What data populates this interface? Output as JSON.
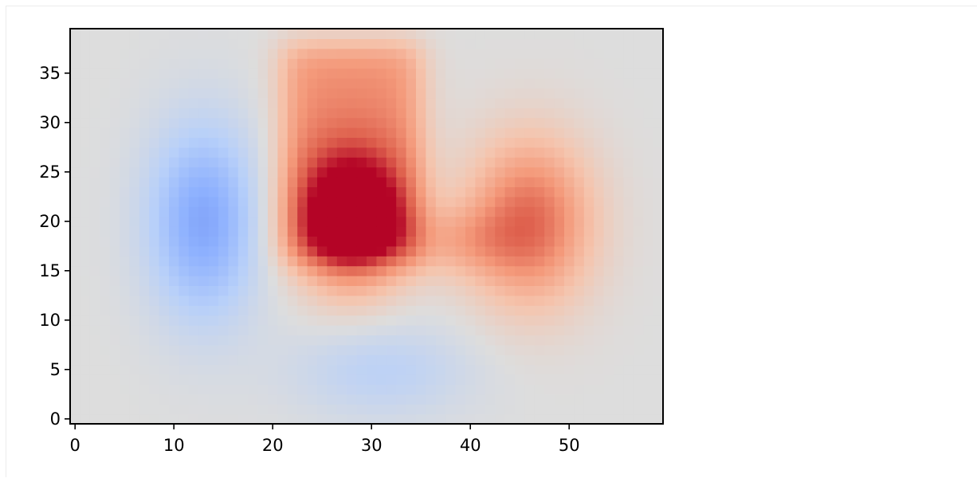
{
  "chart_data": {
    "type": "heatmap",
    "title": "",
    "xlabel": "",
    "ylabel": "",
    "colormap": "coolwarm",
    "grid_size": {
      "cols": 60,
      "rows": 40
    },
    "xlim": [
      -0.5,
      59.5
    ],
    "ylim": [
      -0.5,
      39.5
    ],
    "x_ticks": [
      0,
      10,
      20,
      30,
      40,
      50
    ],
    "x_tick_labels": [
      "0",
      "10",
      "20",
      "30",
      "40",
      "50"
    ],
    "y_ticks": [
      0,
      5,
      10,
      15,
      20,
      25,
      30,
      35
    ],
    "y_tick_labels": [
      "0",
      "5",
      "10",
      "15",
      "20",
      "25",
      "30",
      "35"
    ],
    "value_range": [
      -1,
      1
    ],
    "grid": false,
    "components": [
      {
        "kind": "gaussian",
        "x": 13,
        "y": 20,
        "sx": 4.0,
        "sy": 7.0,
        "amplitude": -0.55
      },
      {
        "kind": "gaussian",
        "x": 28,
        "y": 20,
        "sx": 4.0,
        "sy": 5.0,
        "amplitude": 0.9
      },
      {
        "kind": "box",
        "x0": 21,
        "x1": 35,
        "y0": 16,
        "y1": 38,
        "amplitude": 0.55,
        "softness": 1.0
      },
      {
        "kind": "gaussian",
        "x": 46,
        "y": 20,
        "sx": 4.5,
        "sy": 6.0,
        "amplitude": 0.7
      },
      {
        "kind": "gaussian",
        "x": 39,
        "y": 18,
        "sx": 4.0,
        "sy": 2.5,
        "amplitude": 0.25
      },
      {
        "kind": "gaussian",
        "x": 31,
        "y": 5,
        "sx": 6.5,
        "sy": 3.5,
        "amplitude": -0.22
      }
    ],
    "colors": {
      "axis": "#000000",
      "background": "#ffffff",
      "cold": "#3b4cc0",
      "neutral": "#dddddd",
      "warm": "#b40426"
    }
  }
}
